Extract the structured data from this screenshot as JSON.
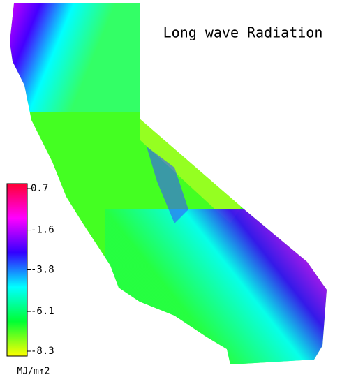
{
  "title": "Long wave Radiation",
  "colorbar": {
    "ticks": [
      0.7,
      -1.6,
      -3.8,
      -6.1,
      -8.3
    ],
    "lim": [
      -8.3,
      0.7
    ],
    "unit": "MJ/m↑2",
    "colors": [
      "#ff0033",
      "#ff00ff",
      "#3300ff",
      "#00ffff",
      "#00ff33",
      "#ffff00"
    ]
  }
}
